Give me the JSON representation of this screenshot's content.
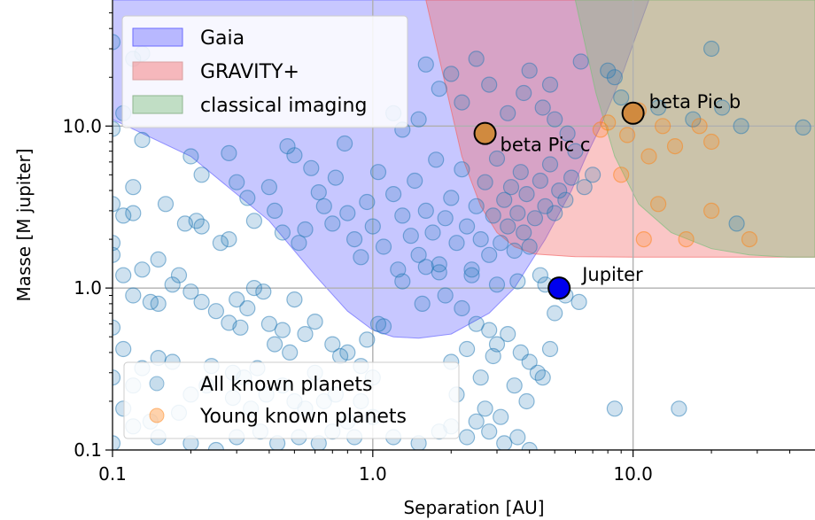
{
  "chart_data": {
    "type": "scatter",
    "xscale": "log",
    "yscale": "log",
    "xlim": [
      0.1,
      50
    ],
    "ylim": [
      0.1,
      60
    ],
    "grid": true,
    "xlabel": "Separation   [AU]",
    "ylabel": "Masse   [M jupiter]",
    "xticks": [
      {
        "value": 0.1,
        "label": "0.1"
      },
      {
        "value": 1.0,
        "label": "1.0"
      },
      {
        "value": 10.0,
        "label": "10.0"
      }
    ],
    "yticks": [
      {
        "value": 0.1,
        "label": "0.1"
      },
      {
        "value": 1.0,
        "label": "1.0"
      },
      {
        "value": 10.0,
        "label": "10.0"
      }
    ],
    "regions": [
      {
        "name": "Gaia",
        "color": "#6b6bff",
        "boundary": [
          [
            0.1,
            60
          ],
          [
            0.1,
            11
          ],
          [
            0.2,
            6.5
          ],
          [
            0.4,
            2.6
          ],
          [
            0.6,
            1.2
          ],
          [
            0.8,
            0.72
          ],
          [
            1.0,
            0.55
          ],
          [
            1.2,
            0.5
          ],
          [
            1.5,
            0.49
          ],
          [
            2.0,
            0.52
          ],
          [
            2.8,
            0.7
          ],
          [
            3.5,
            1.0
          ],
          [
            4.6,
            2.0
          ],
          [
            5.8,
            4.0
          ],
          [
            6.6,
            6.5
          ],
          [
            7.4,
            9.5
          ],
          [
            8.2,
            14
          ],
          [
            9.2,
            22
          ],
          [
            10.5,
            40
          ],
          [
            11.5,
            60
          ]
        ]
      },
      {
        "name": "GRAVITY+",
        "color": "#f36a6a",
        "boundary": [
          [
            1.6,
            60
          ],
          [
            1.9,
            18
          ],
          [
            2.2,
            6.5
          ],
          [
            2.6,
            3.2
          ],
          [
            3.0,
            2.2
          ],
          [
            3.5,
            1.8
          ],
          [
            4.2,
            1.62
          ],
          [
            6.0,
            1.56
          ],
          [
            10,
            1.55
          ],
          [
            20,
            1.55
          ],
          [
            50,
            1.55
          ],
          [
            50,
            60
          ]
        ]
      },
      {
        "name": "classical imaging",
        "color": "#7fbf7f",
        "boundary": [
          [
            6.0,
            60
          ],
          [
            7.2,
            16
          ],
          [
            8.5,
            6.5
          ],
          [
            10.5,
            3.3
          ],
          [
            14,
            2.2
          ],
          [
            20,
            1.75
          ],
          [
            28,
            1.6
          ],
          [
            40,
            1.55
          ],
          [
            50,
            1.55
          ],
          [
            50,
            60
          ]
        ]
      }
    ],
    "series": [
      {
        "name": "All known planets",
        "color": "#1f77b4",
        "points": [
          [
            0.1,
            33
          ],
          [
            0.12,
            26
          ],
          [
            0.13,
            28
          ],
          [
            0.11,
            12
          ],
          [
            0.1,
            9.6
          ],
          [
            0.13,
            8.2
          ],
          [
            0.12,
            4.2
          ],
          [
            0.1,
            3.3
          ],
          [
            0.12,
            2.9
          ],
          [
            0.11,
            2.8
          ],
          [
            0.16,
            3.3
          ],
          [
            0.19,
            2.5
          ],
          [
            0.21,
            2.6
          ],
          [
            0.22,
            2.4
          ],
          [
            0.15,
            1.5
          ],
          [
            0.18,
            1.2
          ],
          [
            0.1,
            1.9
          ],
          [
            0.1,
            1.6
          ],
          [
            0.13,
            1.3
          ],
          [
            0.11,
            1.2
          ],
          [
            0.12,
            0.9
          ],
          [
            0.14,
            0.82
          ],
          [
            0.15,
            0.8
          ],
          [
            0.17,
            1.05
          ],
          [
            0.2,
            0.95
          ],
          [
            0.22,
            0.82
          ],
          [
            0.26,
            1.9
          ],
          [
            0.28,
            2.0
          ],
          [
            0.25,
            0.72
          ],
          [
            0.28,
            0.61
          ],
          [
            0.31,
            0.57
          ],
          [
            0.3,
            0.85
          ],
          [
            0.35,
            1.0
          ],
          [
            0.38,
            0.95
          ],
          [
            0.33,
            0.75
          ],
          [
            0.4,
            0.6
          ],
          [
            0.45,
            0.55
          ],
          [
            0.5,
            0.85
          ],
          [
            0.42,
            0.45
          ],
          [
            0.48,
            0.4
          ],
          [
            0.55,
            0.52
          ],
          [
            0.6,
            0.62
          ],
          [
            0.7,
            0.45
          ],
          [
            0.75,
            0.38
          ],
          [
            0.8,
            0.4
          ],
          [
            0.9,
            0.33
          ],
          [
            0.95,
            0.48
          ],
          [
            1.05,
            0.6
          ],
          [
            1.1,
            0.58
          ],
          [
            1.0,
            0.28
          ],
          [
            0.1,
            0.57
          ],
          [
            0.11,
            0.42
          ],
          [
            0.13,
            0.32
          ],
          [
            0.12,
            0.25
          ],
          [
            0.1,
            0.28
          ],
          [
            0.15,
            0.37
          ],
          [
            0.17,
            0.35
          ],
          [
            0.2,
            0.22
          ],
          [
            0.23,
            0.25
          ],
          [
            0.24,
            0.33
          ],
          [
            0.29,
            0.3
          ],
          [
            0.32,
            0.28
          ],
          [
            0.36,
            0.32
          ],
          [
            0.29,
            0.21
          ],
          [
            0.34,
            0.18
          ],
          [
            0.39,
            0.22
          ],
          [
            0.45,
            0.25
          ],
          [
            0.5,
            0.2
          ],
          [
            0.55,
            0.18
          ],
          [
            0.6,
            0.3
          ],
          [
            0.65,
            0.2
          ],
          [
            0.72,
            0.22
          ],
          [
            0.8,
            0.15
          ],
          [
            0.9,
            0.2
          ],
          [
            1.0,
            0.16
          ],
          [
            1.2,
            0.12
          ],
          [
            1.5,
            0.11
          ],
          [
            1.8,
            0.13
          ],
          [
            2.0,
            0.14
          ],
          [
            2.3,
            0.12
          ],
          [
            2.5,
            0.15
          ],
          [
            2.8,
            0.13
          ],
          [
            3.2,
            0.11
          ],
          [
            3.6,
            0.12
          ],
          [
            4.0,
            0.1
          ],
          [
            0.12,
            0.14
          ],
          [
            0.15,
            0.12
          ],
          [
            0.2,
            0.11
          ],
          [
            0.25,
            0.1
          ],
          [
            0.3,
            0.12
          ],
          [
            0.37,
            0.13
          ],
          [
            0.43,
            0.11
          ],
          [
            0.52,
            0.12
          ],
          [
            0.62,
            0.11
          ],
          [
            0.7,
            0.13
          ],
          [
            0.85,
            0.12
          ],
          [
            0.14,
            0.15
          ],
          [
            0.1,
            0.11
          ],
          [
            0.11,
            0.18
          ],
          [
            0.18,
            0.17
          ],
          [
            0.2,
            6.5
          ],
          [
            0.22,
            5.0
          ],
          [
            0.28,
            6.8
          ],
          [
            0.3,
            4.5
          ],
          [
            0.33,
            3.6
          ],
          [
            0.35,
            2.6
          ],
          [
            0.4,
            4.2
          ],
          [
            0.42,
            3.0
          ],
          [
            0.45,
            2.2
          ],
          [
            0.47,
            7.5
          ],
          [
            0.5,
            6.6
          ],
          [
            0.52,
            1.9
          ],
          [
            0.55,
            2.3
          ],
          [
            0.58,
            5.5
          ],
          [
            0.62,
            3.9
          ],
          [
            0.65,
            3.2
          ],
          [
            0.7,
            2.5
          ],
          [
            0.72,
            4.8
          ],
          [
            0.78,
            7.8
          ],
          [
            0.8,
            2.9
          ],
          [
            0.85,
            2.0
          ],
          [
            0.9,
            1.55
          ],
          [
            0.95,
            3.4
          ],
          [
            1.0,
            2.4
          ],
          [
            1.05,
            5.2
          ],
          [
            1.1,
            1.8
          ],
          [
            1.2,
            3.8
          ],
          [
            1.3,
            2.8
          ],
          [
            1.25,
            1.3
          ],
          [
            1.4,
            2.1
          ],
          [
            1.45,
            4.6
          ],
          [
            1.5,
            1.6
          ],
          [
            1.6,
            3.0
          ],
          [
            1.7,
            2.2
          ],
          [
            1.75,
            6.2
          ],
          [
            1.8,
            1.4
          ],
          [
            1.9,
            2.7
          ],
          [
            2.0,
            3.6
          ],
          [
            2.1,
            1.9
          ],
          [
            2.2,
            5.4
          ],
          [
            2.3,
            2.4
          ],
          [
            2.4,
            1.2
          ],
          [
            2.5,
            3.2
          ],
          [
            2.6,
            2.0
          ],
          [
            2.7,
            4.5
          ],
          [
            2.8,
            1.6
          ],
          [
            2.9,
            2.8
          ],
          [
            3.0,
            6.3
          ],
          [
            3.1,
            1.9
          ],
          [
            3.2,
            3.5
          ],
          [
            3.3,
            2.4
          ],
          [
            3.4,
            4.2
          ],
          [
            3.5,
            1.7
          ],
          [
            3.6,
            2.9
          ],
          [
            3.7,
            5.2
          ],
          [
            3.8,
            2.2
          ],
          [
            3.9,
            3.8
          ],
          [
            4.0,
            1.8
          ],
          [
            4.2,
            2.7
          ],
          [
            4.4,
            4.6
          ],
          [
            4.6,
            3.2
          ],
          [
            4.8,
            5.8
          ],
          [
            5.0,
            2.9
          ],
          [
            5.2,
            4.0
          ],
          [
            5.5,
            3.5
          ],
          [
            5.8,
            4.8
          ],
          [
            6.0,
            7.0
          ],
          [
            6.5,
            4.2
          ],
          [
            7.0,
            5.0
          ],
          [
            2.2,
            14
          ],
          [
            2.0,
            21
          ],
          [
            2.8,
            18
          ],
          [
            3.3,
            12
          ],
          [
            3.8,
            16
          ],
          [
            4.5,
            13
          ],
          [
            5.0,
            11
          ],
          [
            5.6,
            9.0
          ],
          [
            1.8,
            17
          ],
          [
            1.5,
            11
          ],
          [
            1.3,
            9.5
          ],
          [
            1.2,
            12
          ],
          [
            1.6,
            24
          ],
          [
            2.5,
            26
          ],
          [
            4.0,
            22
          ],
          [
            4.8,
            18
          ],
          [
            6.3,
            25
          ],
          [
            8.0,
            22
          ],
          [
            8.5,
            20
          ],
          [
            9.0,
            15
          ],
          [
            12.5,
            13
          ],
          [
            20,
            30
          ],
          [
            22,
            13
          ],
          [
            26,
            10
          ],
          [
            25,
            2.5
          ],
          [
            17,
            11
          ],
          [
            45,
            9.8
          ],
          [
            1.55,
            0.8
          ],
          [
            1.9,
            0.9
          ],
          [
            2.2,
            0.75
          ],
          [
            2.5,
            0.6
          ],
          [
            2.8,
            0.55
          ],
          [
            3.0,
            0.45
          ],
          [
            3.3,
            0.52
          ],
          [
            3.7,
            0.4
          ],
          [
            4.0,
            0.35
          ],
          [
            4.3,
            0.3
          ],
          [
            4.8,
            0.42
          ],
          [
            2.0,
            0.35
          ],
          [
            2.3,
            0.42
          ],
          [
            2.6,
            0.28
          ],
          [
            2.9,
            0.38
          ],
          [
            3.5,
            0.25
          ],
          [
            3.9,
            0.2
          ],
          [
            4.5,
            0.28
          ],
          [
            5.0,
            0.7
          ],
          [
            5.5,
            0.9
          ],
          [
            6.2,
            0.82
          ],
          [
            2.1,
            0.22
          ],
          [
            2.7,
            0.18
          ],
          [
            3.1,
            0.16
          ],
          [
            8.5,
            0.18
          ],
          [
            15,
            0.18
          ],
          [
            4.6,
            1.05
          ],
          [
            4.4,
            1.2
          ],
          [
            3.6,
            1.1
          ],
          [
            3.0,
            1.05
          ],
          [
            2.4,
            1.3
          ],
          [
            1.8,
            1.25
          ],
          [
            1.6,
            1.35
          ],
          [
            1.3,
            1.1
          ]
        ]
      },
      {
        "name": "Young known planets",
        "color": "#ff7f0e",
        "points": [
          [
            8.0,
            10.5
          ],
          [
            9.5,
            8.8
          ],
          [
            10.5,
            12.5
          ],
          [
            13,
            10
          ],
          [
            14.5,
            7.5
          ],
          [
            18,
            10
          ],
          [
            20,
            8.0
          ],
          [
            11.5,
            6.5
          ],
          [
            12.5,
            3.3
          ],
          [
            20,
            3.0
          ],
          [
            11.0,
            2.0
          ],
          [
            16,
            2.0
          ],
          [
            28,
            2.0
          ],
          [
            9.0,
            5.0
          ],
          [
            7.5,
            9.5
          ]
        ]
      }
    ],
    "highlights": [
      {
        "label": "beta Pic b",
        "x": 10.0,
        "y": 12.0,
        "color": "#d08a3f"
      },
      {
        "label": "beta Pic c",
        "x": 2.7,
        "y": 9.0,
        "color": "#d08a3f"
      },
      {
        "label": "Jupiter",
        "x": 5.2,
        "y": 1.0,
        "color": "#0000ee"
      }
    ]
  }
}
